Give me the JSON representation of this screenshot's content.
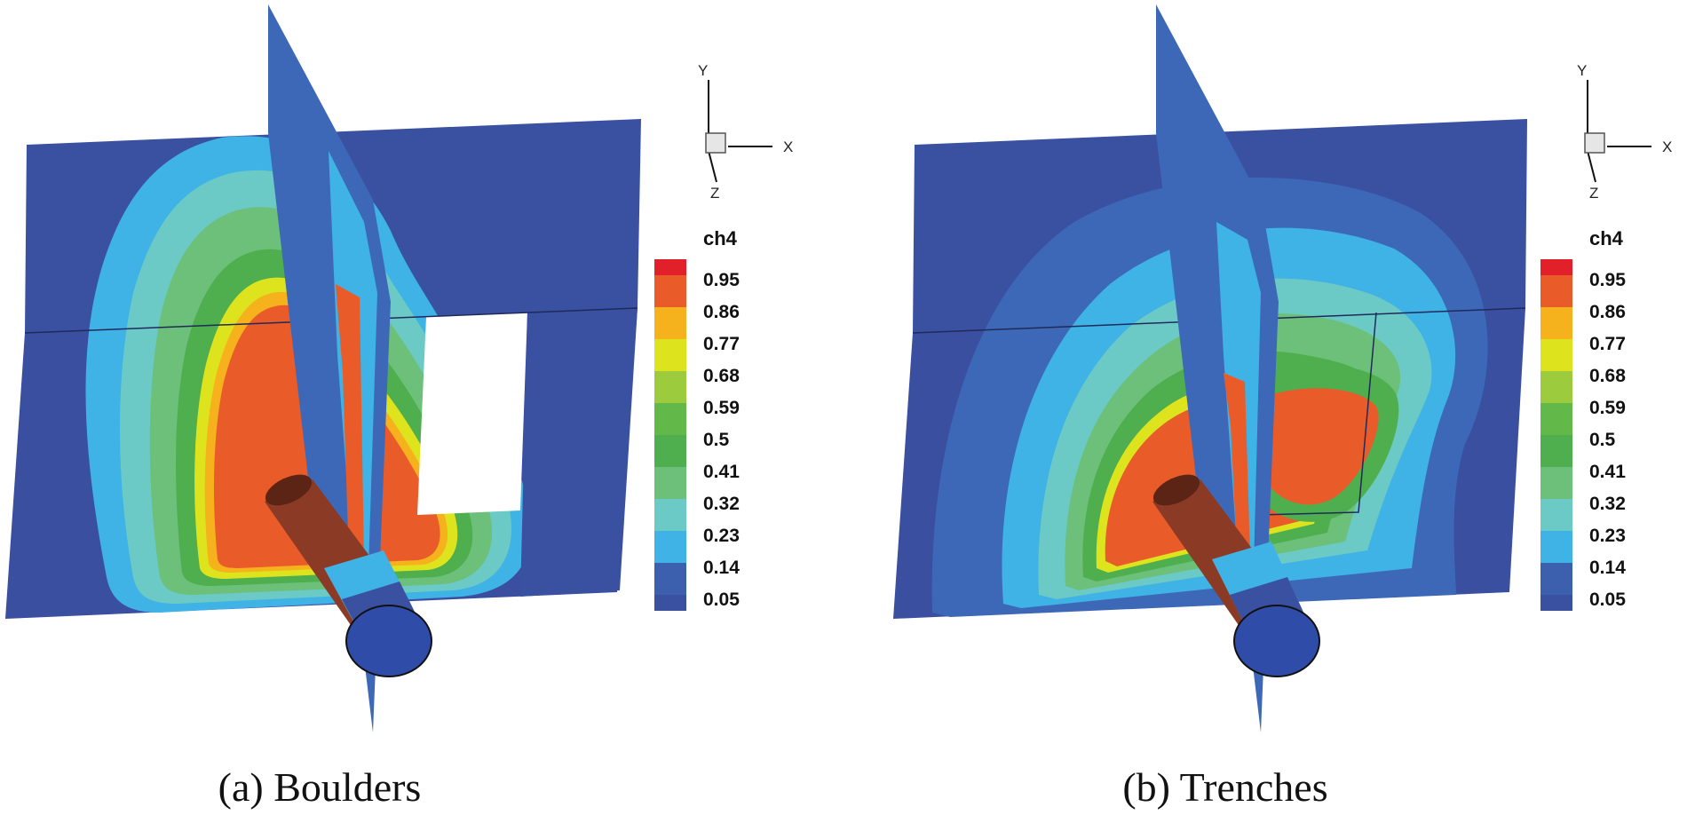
{
  "panels": [
    {
      "id": "a",
      "caption": "(a) Boulders"
    },
    {
      "id": "b",
      "caption": "(b) Trenches"
    }
  ],
  "legend": {
    "title": "ch4",
    "levels": [
      "0.95",
      "0.86",
      "0.77",
      "0.68",
      "0.59",
      "0.5",
      "0.41",
      "0.32",
      "0.23",
      "0.14",
      "0.05"
    ]
  },
  "axes": {
    "y": "Y",
    "x": "X",
    "z": "Z"
  },
  "colors": {
    "level_0_95": "#e2202a",
    "level_0_86": "#e95c2a",
    "level_0_77": "#f6b21c",
    "level_0_68": "#dde41e",
    "level_0_59": "#9ccb3d",
    "level_0_5": "#63b84a",
    "level_0_41": "#4faf4f",
    "level_0_32": "#6cc07a",
    "level_0_23": "#6bcac6",
    "level_0_14": "#3fb2e6",
    "level_0_05": "#3c5fae",
    "background_field": "#3a51a1"
  }
}
